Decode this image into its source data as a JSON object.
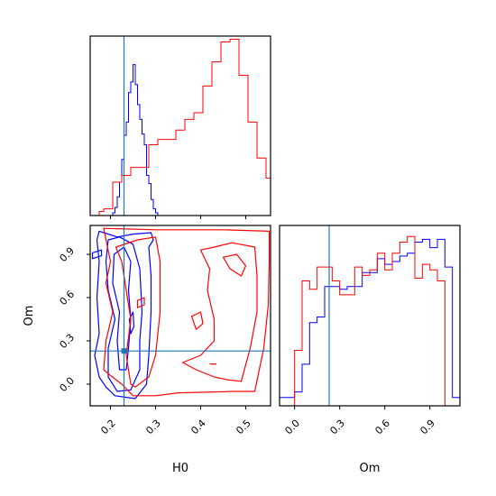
{
  "chart_data": {
    "type": "corner",
    "parameters": [
      "H0",
      "Om"
    ],
    "truths": {
      "H0": 0.23,
      "Om": 0.23
    },
    "truth_color": "#1f77b4",
    "series": [
      {
        "color": "#0000ff"
      },
      {
        "color": "#ff0000"
      }
    ],
    "panels": {
      "hist_H0": {
        "xlim": [
          0.155,
          0.555
        ],
        "xticks": [
          0.2,
          0.3,
          0.4,
          0.5
        ],
        "blue_bins": [
          0.155,
          0.205,
          0.21,
          0.215,
          0.22,
          0.225,
          0.23,
          0.235,
          0.24,
          0.245,
          0.25,
          0.255,
          0.26,
          0.265,
          0.27,
          0.275,
          0.28,
          0.285,
          0.29,
          0.295,
          0.3,
          0.305,
          0.555
        ],
        "blue_counts": [
          0,
          2,
          6,
          14,
          25,
          42,
          60,
          70,
          92,
          100,
          113,
          98,
          83,
          72,
          61,
          53,
          30,
          24,
          12,
          5,
          2,
          0
        ],
        "red_bins": [
          0.155,
          0.175,
          0.185,
          0.205,
          0.225,
          0.245,
          0.265,
          0.285,
          0.305,
          0.325,
          0.345,
          0.365,
          0.385,
          0.405,
          0.425,
          0.445,
          0.465,
          0.485,
          0.505,
          0.525,
          0.545,
          0.555
        ],
        "red_counts": [
          0,
          3,
          5,
          25,
          30,
          36,
          36,
          53,
          57,
          57,
          64,
          72,
          77,
          97,
          115,
          130,
          132,
          105,
          70,
          43,
          28,
          0
        ]
      },
      "hist_Om": {
        "xlim": [
          -0.1,
          1.1
        ],
        "xticks": [
          0.0,
          0.3,
          0.6,
          0.9
        ],
        "xticklabels": [
          "0.0",
          "0.3",
          "0.6",
          "0.9"
        ],
        "blue_bins": [
          -0.1,
          -0.05,
          0.0,
          0.05,
          0.1,
          0.15,
          0.2,
          0.25,
          0.3,
          0.35,
          0.4,
          0.45,
          0.5,
          0.55,
          0.6,
          0.65,
          0.7,
          0.75,
          0.8,
          0.85,
          0.9,
          0.95,
          1.0,
          1.05,
          1.1
        ],
        "blue_counts": [
          3,
          3,
          5,
          15,
          30,
          32,
          43,
          43,
          42,
          43,
          43,
          48,
          48,
          53,
          51,
          52,
          54,
          55,
          59,
          60,
          57,
          60,
          50,
          3,
          3
        ],
        "red_bins": [
          0.0,
          0.05,
          0.1,
          0.15,
          0.2,
          0.25,
          0.3,
          0.35,
          0.4,
          0.45,
          0.5,
          0.55,
          0.6,
          0.65,
          0.7,
          0.75,
          0.8,
          0.85,
          0.9,
          0.95,
          1.0
        ],
        "red_counts": [
          20,
          45,
          42,
          50,
          50,
          45,
          40,
          40,
          50,
          47,
          49,
          55,
          49,
          55,
          59,
          61,
          46,
          51,
          49,
          45,
          0
        ]
      },
      "scatter": {
        "xlim": [
          0.155,
          0.555
        ],
        "ylim": [
          -0.15,
          1.1
        ],
        "xticks": [
          0.2,
          0.3,
          0.4,
          0.5
        ],
        "xticklabels": [
          "0.2",
          "0.3",
          "0.4",
          "0.5"
        ],
        "yticks": [
          0.0,
          0.3,
          0.6,
          0.9
        ],
        "yticklabels": [
          "0.0",
          "0.3",
          "0.6",
          "0.9"
        ],
        "xlabel": "H0",
        "ylabel": "Om",
        "contours": [
          {
            "series": 0,
            "points": [
              [
                0.175,
                1.06
              ],
              [
                0.185,
                1.05
              ],
              [
                0.215,
                1.02
              ],
              [
                0.25,
                1.04
              ],
              [
                0.29,
                1.05
              ],
              [
                0.295,
                1.0
              ],
              [
                0.285,
                0.95
              ],
              [
                0.29,
                0.75
              ],
              [
                0.29,
                0.5
              ],
              [
                0.285,
                0.2
              ],
              [
                0.28,
                0.0
              ],
              [
                0.255,
                -0.1
              ],
              [
                0.21,
                -0.08
              ],
              [
                0.19,
                -0.02
              ],
              [
                0.175,
                0.05
              ],
              [
                0.165,
                0.2
              ],
              [
                0.175,
                0.35
              ],
              [
                0.17,
                0.6
              ],
              [
                0.175,
                0.85
              ],
              [
                0.17,
                1.0
              ]
            ]
          },
          {
            "series": 0,
            "points": [
              [
                0.195,
                1.0
              ],
              [
                0.22,
                1.02
              ],
              [
                0.25,
                0.97
              ],
              [
                0.265,
                0.8
              ],
              [
                0.27,
                0.5
              ],
              [
                0.265,
                0.3
              ],
              [
                0.265,
                0.1
              ],
              [
                0.245,
                -0.04
              ],
              [
                0.215,
                -0.05
              ],
              [
                0.195,
                0.05
              ],
              [
                0.195,
                0.25
              ],
              [
                0.21,
                0.45
              ],
              [
                0.195,
                0.65
              ],
              [
                0.19,
                0.85
              ]
            ]
          },
          {
            "series": 0,
            "points": [
              [
                0.208,
                0.9
              ],
              [
                0.23,
                0.95
              ],
              [
                0.245,
                0.85
              ],
              [
                0.24,
                0.65
              ],
              [
                0.245,
                0.45
              ],
              [
                0.24,
                0.25
              ],
              [
                0.235,
                0.1
              ],
              [
                0.22,
                0.1
              ],
              [
                0.215,
                0.3
              ],
              [
                0.22,
                0.5
              ],
              [
                0.205,
                0.7
              ]
            ]
          },
          {
            "series": 0,
            "points": [
              [
                0.242,
                0.45
              ],
              [
                0.25,
                0.5
              ],
              [
                0.252,
                0.4
              ],
              [
                0.245,
                0.35
              ]
            ]
          },
          {
            "series": 0,
            "points": [
              [
                0.16,
                0.87
              ],
              [
                0.18,
                0.89
              ],
              [
                0.18,
                0.93
              ],
              [
                0.16,
                0.91
              ]
            ]
          },
          {
            "series": 1,
            "points": [
              [
                0.185,
                1.08
              ],
              [
                0.3,
                1.07
              ],
              [
                0.45,
                1.07
              ],
              [
                0.552,
                1.06
              ],
              [
                0.552,
                0.85
              ],
              [
                0.55,
                0.55
              ],
              [
                0.54,
                0.25
              ],
              [
                0.52,
                -0.05
              ],
              [
                0.48,
                -0.05
              ],
              [
                0.35,
                -0.06
              ],
              [
                0.3,
                -0.08
              ],
              [
                0.25,
                -0.08
              ],
              [
                0.225,
                0.0
              ],
              [
                0.2,
                0.06
              ],
              [
                0.185,
                0.1
              ],
              [
                0.19,
                0.3
              ],
              [
                0.205,
                0.5
              ],
              [
                0.19,
                0.7
              ],
              [
                0.2,
                0.85
              ]
            ]
          },
          {
            "series": 1,
            "points": [
              [
                0.212,
                0.95
              ],
              [
                0.26,
                1.0
              ],
              [
                0.3,
                1.02
              ],
              [
                0.31,
                0.85
              ],
              [
                0.31,
                0.5
              ],
              [
                0.3,
                0.2
              ],
              [
                0.285,
                0.05
              ],
              [
                0.255,
                -0.02
              ],
              [
                0.245,
                0.0
              ],
              [
                0.235,
                0.2
              ],
              [
                0.245,
                0.45
              ],
              [
                0.235,
                0.65
              ],
              [
                0.225,
                0.85
              ]
            ]
          },
          {
            "series": 1,
            "points": [
              [
                0.4,
                0.93
              ],
              [
                0.43,
                0.95
              ],
              [
                0.47,
                0.98
              ],
              [
                0.52,
                0.95
              ],
              [
                0.525,
                0.75
              ],
              [
                0.525,
                0.5
              ],
              [
                0.51,
                0.25
              ],
              [
                0.49,
                0.02
              ],
              [
                0.46,
                0.03
              ],
              [
                0.43,
                0.05
              ],
              [
                0.39,
                0.1
              ],
              [
                0.36,
                0.15
              ],
              [
                0.4,
                0.2
              ],
              [
                0.43,
                0.3
              ],
              [
                0.43,
                0.45
              ],
              [
                0.415,
                0.65
              ],
              [
                0.42,
                0.8
              ]
            ]
          },
          {
            "series": 1,
            "points": [
              [
                0.45,
                0.88
              ],
              [
                0.48,
                0.9
              ],
              [
                0.5,
                0.82
              ],
              [
                0.49,
                0.75
              ],
              [
                0.465,
                0.8
              ]
            ]
          },
          {
            "series": 1,
            "points": [
              [
                0.38,
                0.47
              ],
              [
                0.4,
                0.5
              ],
              [
                0.405,
                0.42
              ],
              [
                0.39,
                0.38
              ]
            ]
          },
          {
            "series": 1,
            "points": [
              [
                0.26,
                0.58
              ],
              [
                0.275,
                0.6
              ],
              [
                0.275,
                0.55
              ],
              [
                0.26,
                0.53
              ]
            ]
          }
        ],
        "segments": [
          {
            "series": 1,
            "from": [
              0.42,
              0.14
            ],
            "to": [
              0.435,
              0.14
            ]
          }
        ]
      }
    }
  }
}
